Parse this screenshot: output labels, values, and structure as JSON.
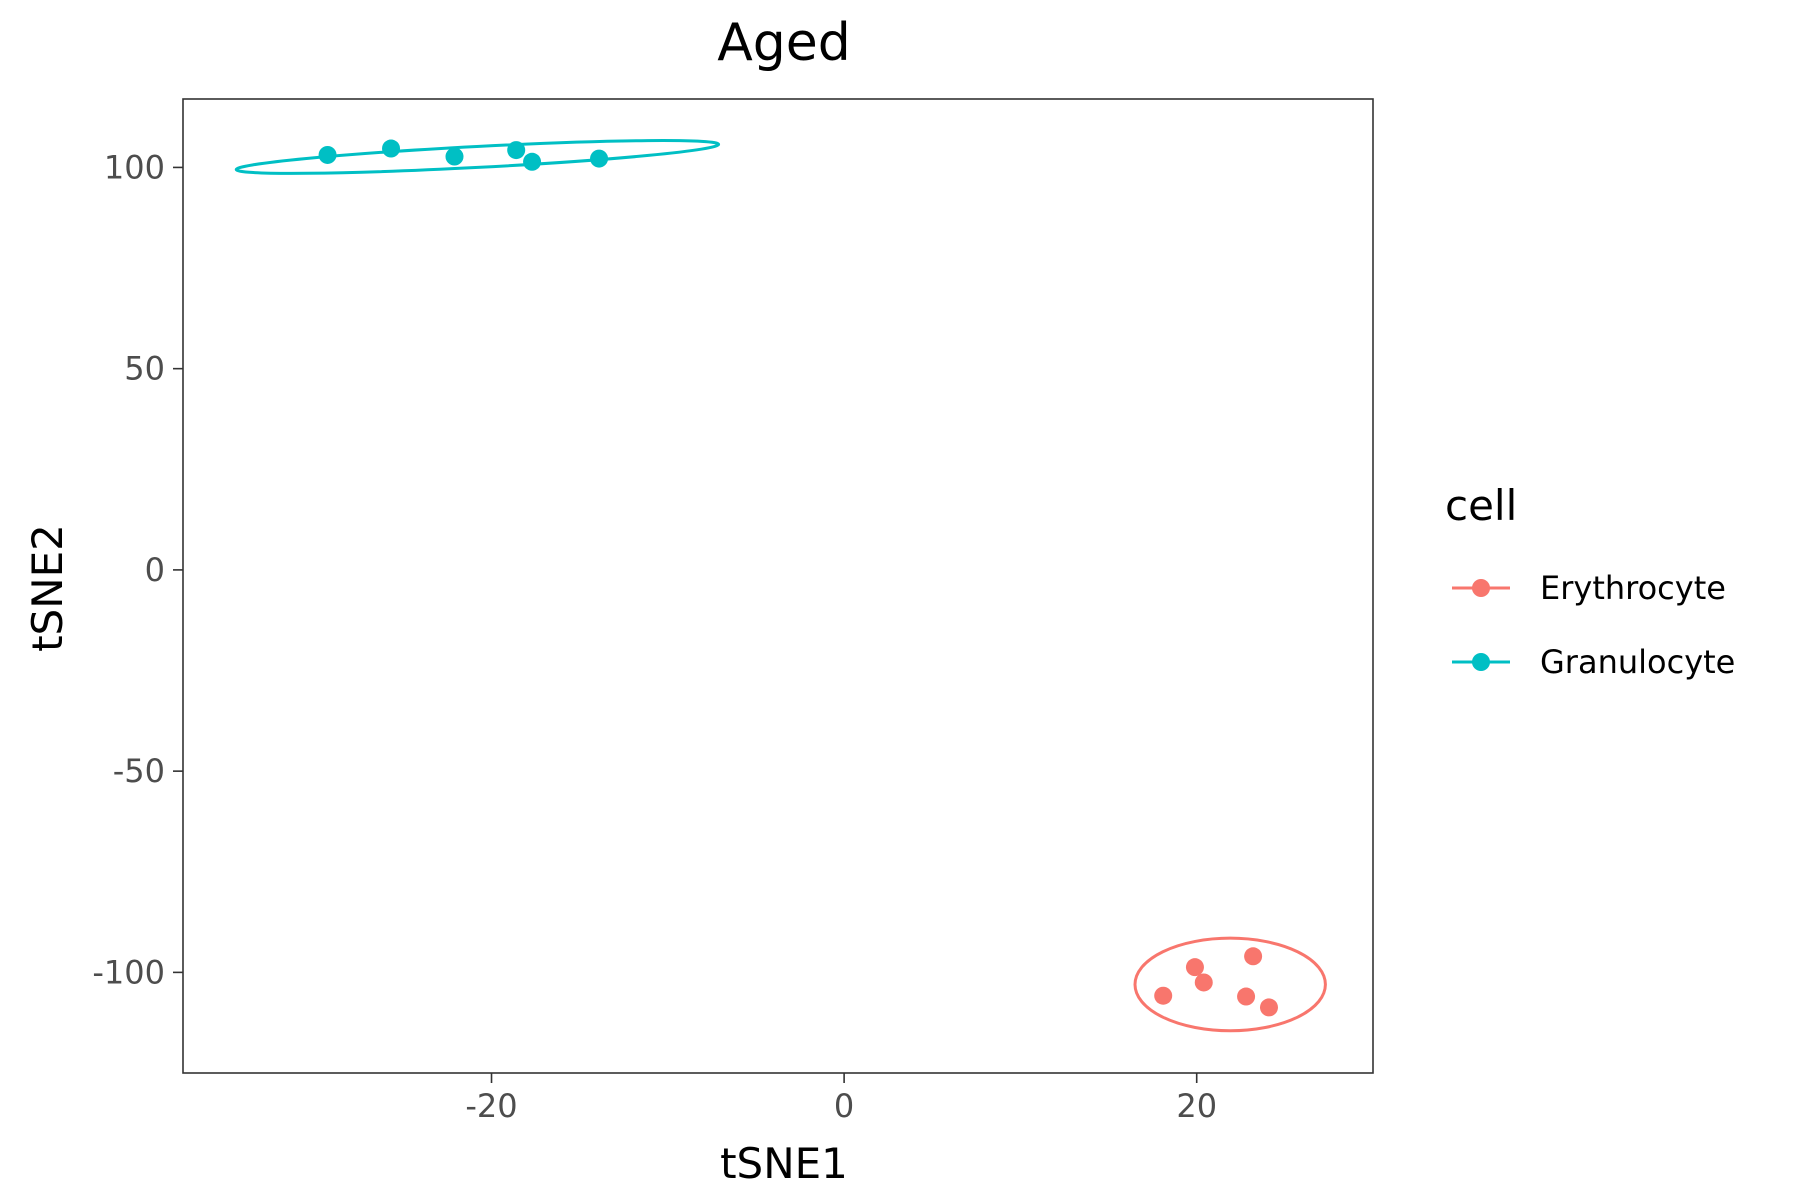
{
  "chart_data": {
    "type": "scatter",
    "title": "Aged",
    "xlabel": "tSNE1",
    "ylabel": "tSNE2",
    "xlim": [
      -37.5,
      30
    ],
    "ylim": [
      -125,
      117
    ],
    "xticks": [
      -20,
      0,
      20
    ],
    "xtick_labels": [
      "-20",
      "0",
      "20"
    ],
    "yticks": [
      100,
      50,
      0,
      -50,
      -100
    ],
    "ytick_labels": [
      "100",
      "50",
      "0",
      "-50",
      "-100"
    ],
    "grid": false,
    "legend": {
      "title": "cell",
      "placement": "right"
    },
    "series": [
      {
        "name": "Erythrocyte",
        "color": "#F8766D",
        "points": [
          {
            "x": 18.1,
            "y": -105.8
          },
          {
            "x": 19.9,
            "y": -98.7
          },
          {
            "x": 20.4,
            "y": -102.5
          },
          {
            "x": 22.8,
            "y": -106.0
          },
          {
            "x": 23.2,
            "y": -96.0
          },
          {
            "x": 24.1,
            "y": -108.7
          }
        ],
        "ellipse": {
          "cx": 21.9,
          "cy": -103.0,
          "rx": 5.4,
          "ry": 11.5,
          "angle_deg": 0
        }
      },
      {
        "name": "Granulocyte",
        "color": "#00BFC4",
        "points": [
          {
            "x": -29.3,
            "y": 103.1
          },
          {
            "x": -25.7,
            "y": 104.7
          },
          {
            "x": -22.1,
            "y": 102.7
          },
          {
            "x": -18.6,
            "y": 104.3
          },
          {
            "x": -17.7,
            "y": 101.4
          },
          {
            "x": -13.9,
            "y": 102.2
          }
        ],
        "ellipse": {
          "cx": -20.8,
          "cy": 102.6,
          "rx": 13.7,
          "ry": 2.6,
          "angle_deg": -3
        }
      }
    ]
  }
}
